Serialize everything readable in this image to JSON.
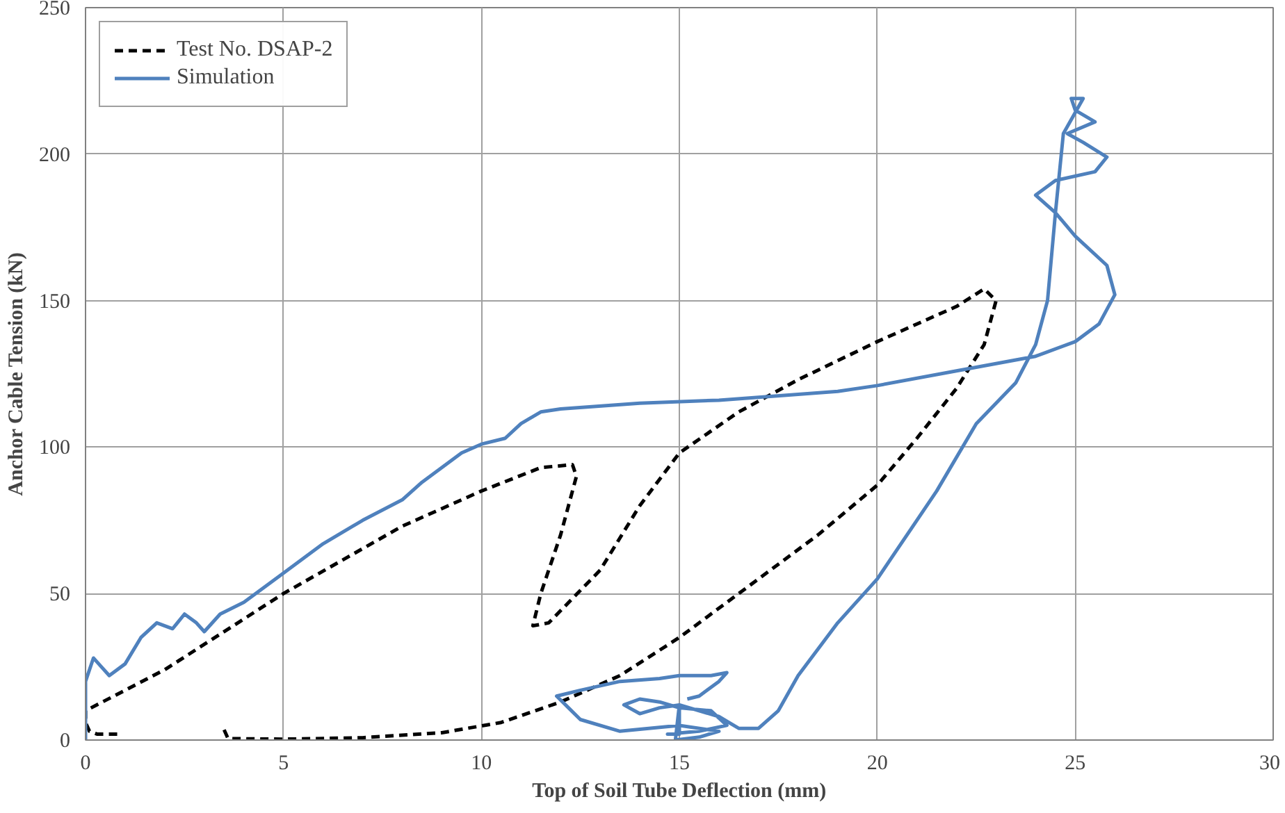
{
  "chart_data": {
    "type": "line",
    "xlabel": "Top of Soil Tube Deflection (mm)",
    "ylabel": "Anchor Cable Tension (kN)",
    "xlim": [
      0,
      30
    ],
    "ylim": [
      0,
      250
    ],
    "xticks": [
      0,
      5,
      10,
      15,
      20,
      25,
      30
    ],
    "yticks": [
      0,
      50,
      100,
      150,
      200,
      250
    ],
    "grid": true,
    "legend": "top left",
    "series": [
      {
        "name": "Test No. DSAP-2",
        "color": "#000000",
        "line_style": "dashed",
        "x": [
          0.8,
          0.3,
          0.1,
          0,
          0,
          2,
          5,
          8,
          10,
          11.5,
          12.3,
          12.4,
          12,
          11.5,
          11.3,
          11.7,
          13,
          14,
          15,
          16.5,
          18,
          20,
          22,
          22.7,
          23,
          22.7,
          22,
          21,
          20,
          18.5,
          17,
          15,
          13.5,
          12,
          10.5,
          9,
          7,
          5,
          3.6,
          3.5
        ],
        "values": [
          2,
          2,
          3,
          6,
          10,
          24,
          50,
          73,
          85,
          93,
          94,
          90,
          70,
          50,
          39,
          40,
          58,
          80,
          98,
          112,
          123,
          136,
          148,
          154,
          150,
          135,
          120,
          103,
          87,
          70,
          55,
          35,
          22,
          13,
          6,
          2.5,
          0.8,
          0.3,
          0.5,
          3.5
        ]
      },
      {
        "name": "Simulation",
        "color": "#4f81bd",
        "line_style": "solid",
        "x": [
          0,
          0,
          0.2,
          0.4,
          0.6,
          1,
          1.4,
          1.8,
          2.2,
          2.5,
          2.8,
          3,
          3.4,
          4,
          5,
          6,
          7,
          8,
          8.5,
          9.5,
          10,
          10.6,
          11,
          11.5,
          12,
          14,
          16,
          18,
          19,
          20,
          22,
          24,
          25,
          25.6,
          26,
          25.8,
          25,
          24.5,
          24,
          24.5,
          25.5,
          25.8,
          25.2,
          24.8,
          25.5,
          25,
          24.9,
          25.2,
          24.7,
          24.5,
          24.3,
          24,
          23.5,
          22.5,
          21.5,
          20.5,
          20,
          19,
          18,
          17.5,
          17,
          16.5,
          16,
          15,
          14.5,
          14,
          13.6,
          14,
          14.5,
          15,
          15.8,
          16.2,
          15.5,
          14.7,
          15,
          15,
          14.9,
          15.5,
          16,
          15,
          13.5,
          12.5,
          12.2,
          11.9,
          12.5,
          13.5,
          14.5,
          15,
          15.8,
          16.2,
          16,
          15.5,
          15.2
        ],
        "values": [
          0,
          20,
          28,
          25,
          22,
          26,
          35,
          40,
          38,
          43,
          40,
          37,
          43,
          47,
          57,
          67,
          75,
          82,
          88,
          98,
          101,
          103,
          108,
          112,
          113,
          115,
          116,
          118,
          119,
          121,
          126,
          131,
          136,
          142,
          152,
          162,
          172,
          180,
          186,
          191,
          194,
          199,
          204,
          207,
          211,
          215,
          219,
          219,
          207,
          180,
          150,
          135,
          122,
          108,
          85,
          65,
          55,
          40,
          22,
          10,
          4,
          4,
          8,
          12,
          11,
          9,
          12,
          14,
          13,
          11,
          10,
          5,
          3,
          2,
          2,
          12,
          0,
          1,
          3,
          5,
          3,
          7,
          11,
          15,
          17,
          20,
          21,
          22,
          22,
          23,
          20,
          15,
          14
        ]
      }
    ]
  }
}
